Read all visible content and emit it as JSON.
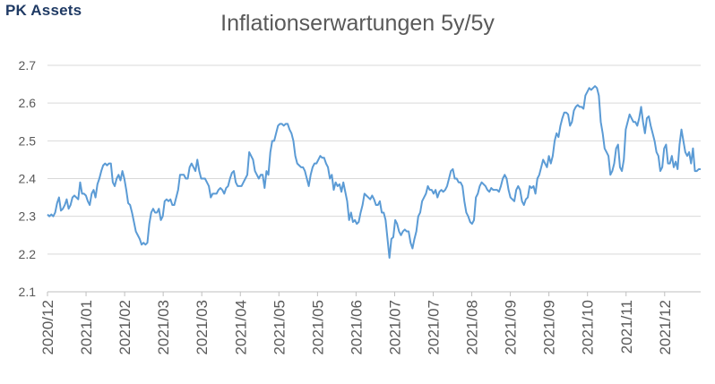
{
  "brand": "PK Assets",
  "chart_data": {
    "type": "line",
    "title": "Inflationserwartungen 5y/5y",
    "xlabel": "",
    "ylabel": "",
    "ylim": [
      2.1,
      2.7
    ],
    "y_ticks": [
      "2.1",
      "2.2",
      "2.3",
      "2.4",
      "2.5",
      "2.6",
      "2.7"
    ],
    "x_tick_labels": [
      "2020/12",
      "2021/01",
      "2021/02",
      "2021/03",
      "2021/03",
      "2021/04",
      "2021/05",
      "2021/05",
      "2021/06",
      "2021/07",
      "2021/07",
      "2021/08",
      "2021/09",
      "2021/09",
      "2021/10",
      "2021/11",
      "2021/12"
    ],
    "grid": "horizontal",
    "line_color": "#5b9bd5",
    "series": [
      {
        "name": "",
        "values": [
          2.305,
          2.3,
          2.305,
          2.3,
          2.31,
          2.335,
          2.35,
          2.315,
          2.32,
          2.33,
          2.345,
          2.32,
          2.33,
          2.35,
          2.355,
          2.35,
          2.345,
          2.39,
          2.36,
          2.36,
          2.355,
          2.34,
          2.33,
          2.36,
          2.37,
          2.35,
          2.385,
          2.4,
          2.42,
          2.435,
          2.44,
          2.435,
          2.44,
          2.44,
          2.39,
          2.38,
          2.4,
          2.41,
          2.395,
          2.42,
          2.4,
          2.37,
          2.335,
          2.33,
          2.31,
          2.285,
          2.26,
          2.25,
          2.24,
          2.225,
          2.23,
          2.225,
          2.23,
          2.28,
          2.31,
          2.32,
          2.31,
          2.31,
          2.32,
          2.29,
          2.3,
          2.34,
          2.345,
          2.34,
          2.345,
          2.33,
          2.33,
          2.35,
          2.37,
          2.41,
          2.41,
          2.41,
          2.4,
          2.4,
          2.43,
          2.44,
          2.43,
          2.42,
          2.45,
          2.42,
          2.4,
          2.4,
          2.4,
          2.39,
          2.38,
          2.35,
          2.36,
          2.36,
          2.36,
          2.37,
          2.375,
          2.37,
          2.36,
          2.375,
          2.38,
          2.4,
          2.415,
          2.42,
          2.39,
          2.38,
          2.38,
          2.38,
          2.39,
          2.4,
          2.41,
          2.47,
          2.46,
          2.45,
          2.42,
          2.41,
          2.4,
          2.41,
          2.41,
          2.375,
          2.42,
          2.41,
          2.47,
          2.5,
          2.5,
          2.52,
          2.54,
          2.545,
          2.545,
          2.54,
          2.545,
          2.545,
          2.53,
          2.52,
          2.5,
          2.46,
          2.44,
          2.435,
          2.43,
          2.43,
          2.42,
          2.4,
          2.38,
          2.41,
          2.43,
          2.44,
          2.44,
          2.45,
          2.46,
          2.455,
          2.455,
          2.44,
          2.43,
          2.4,
          2.41,
          2.37,
          2.39,
          2.38,
          2.385,
          2.365,
          2.39,
          2.365,
          2.34,
          2.29,
          2.31,
          2.285,
          2.29,
          2.28,
          2.285,
          2.31,
          2.33,
          2.36,
          2.355,
          2.35,
          2.345,
          2.355,
          2.345,
          2.33,
          2.33,
          2.34,
          2.31,
          2.31,
          2.29,
          2.24,
          2.19,
          2.24,
          2.245,
          2.29,
          2.28,
          2.26,
          2.25,
          2.26,
          2.265,
          2.26,
          2.26,
          2.23,
          2.215,
          2.24,
          2.26,
          2.3,
          2.31,
          2.34,
          2.35,
          2.36,
          2.38,
          2.37,
          2.37,
          2.36,
          2.37,
          2.35,
          2.365,
          2.37,
          2.365,
          2.37,
          2.38,
          2.4,
          2.42,
          2.425,
          2.4,
          2.4,
          2.39,
          2.39,
          2.38,
          2.34,
          2.31,
          2.3,
          2.285,
          2.28,
          2.29,
          2.35,
          2.36,
          2.38,
          2.39,
          2.385,
          2.38,
          2.37,
          2.365,
          2.375,
          2.37,
          2.37,
          2.37,
          2.365,
          2.38,
          2.4,
          2.41,
          2.4,
          2.37,
          2.35,
          2.345,
          2.34,
          2.37,
          2.38,
          2.37,
          2.34,
          2.33,
          2.345,
          2.35,
          2.38,
          2.375,
          2.38,
          2.36,
          2.4,
          2.41,
          2.43,
          2.45,
          2.44,
          2.43,
          2.46,
          2.44,
          2.46,
          2.5,
          2.52,
          2.51,
          2.54,
          2.56,
          2.575,
          2.575,
          2.57,
          2.54,
          2.55,
          2.58,
          2.59,
          2.595,
          2.59,
          2.59,
          2.585,
          2.62,
          2.63,
          2.64,
          2.635,
          2.64,
          2.645,
          2.64,
          2.62,
          2.55,
          2.52,
          2.48,
          2.47,
          2.46,
          2.41,
          2.42,
          2.44,
          2.48,
          2.49,
          2.43,
          2.42,
          2.45,
          2.53,
          2.55,
          2.57,
          2.56,
          2.55,
          2.55,
          2.54,
          2.56,
          2.59,
          2.55,
          2.52,
          2.56,
          2.565,
          2.54,
          2.52,
          2.5,
          2.47,
          2.46,
          2.42,
          2.43,
          2.48,
          2.49,
          2.44,
          2.44,
          2.46,
          2.43,
          2.445,
          2.425,
          2.49,
          2.53,
          2.5,
          2.47,
          2.46,
          2.47,
          2.44,
          2.48,
          2.42,
          2.42,
          2.425,
          2.425
        ]
      }
    ]
  }
}
